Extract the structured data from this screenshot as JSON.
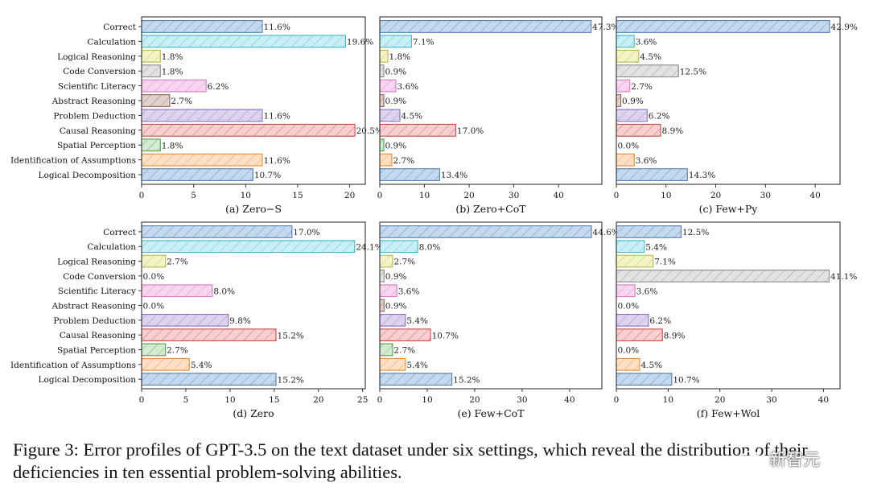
{
  "figure": {
    "caption": "Figure 3: Error profiles of GPT-3.5 on the text dataset under six settings, which reveal the distribution of their deficiencies in ten essential problem-solving abilities.",
    "watermark": "新智元",
    "watermark_icon": "wechat-icon"
  },
  "chart_data": [
    {
      "type": "bar",
      "orientation": "horizontal",
      "title": "(a) Zero−S",
      "categories": [
        "Correct",
        "Calculation",
        "Logical Reasoning",
        "Code Conversion",
        "Scientific Literacy",
        "Abstract Reasoning",
        "Problem Deduction",
        "Causal Reasoning",
        "Spatial Perception",
        "Identification of Assumptions",
        "Logical Decomposition"
      ],
      "values": [
        11.6,
        19.6,
        1.8,
        1.8,
        6.2,
        2.7,
        11.6,
        20.5,
        1.8,
        11.6,
        10.7
      ],
      "data_labels": [
        "11.6%",
        "19.6%",
        "1.8%",
        "1.8%",
        "6.2%",
        "2.7%",
        "11.6%",
        "20.5%",
        "1.8%",
        "11.6%",
        "10.7%"
      ],
      "xlim": [
        0,
        21.5
      ],
      "xticks": [
        0,
        5,
        10,
        15,
        20
      ],
      "grid": false
    },
    {
      "type": "bar",
      "orientation": "horizontal",
      "title": "(b) Zero+CoT",
      "categories": [
        "Correct",
        "Calculation",
        "Logical Reasoning",
        "Code Conversion",
        "Scientific Literacy",
        "Abstract Reasoning",
        "Problem Deduction",
        "Causal Reasoning",
        "Spatial Perception",
        "Identification of Assumptions",
        "Logical Decomposition"
      ],
      "values": [
        47.3,
        7.1,
        1.8,
        0.9,
        3.6,
        0.9,
        4.5,
        17.0,
        0.9,
        2.7,
        13.4
      ],
      "data_labels": [
        "47.3%",
        "7.1%",
        "1.8%",
        "0.9%",
        "3.6%",
        "0.9%",
        "4.5%",
        "17.0%",
        "0.9%",
        "2.7%",
        "13.4%"
      ],
      "xlim": [
        0,
        49.7
      ],
      "xticks": [
        0,
        10,
        20,
        30,
        40
      ],
      "grid": false
    },
    {
      "type": "bar",
      "orientation": "horizontal",
      "title": "(c) Few+Py",
      "categories": [
        "Correct",
        "Calculation",
        "Logical Reasoning",
        "Code Conversion",
        "Scientific Literacy",
        "Abstract Reasoning",
        "Problem Deduction",
        "Causal Reasoning",
        "Spatial Perception",
        "Identification of Assumptions",
        "Logical Decomposition"
      ],
      "values": [
        42.9,
        3.6,
        4.5,
        12.5,
        2.7,
        0.9,
        6.2,
        8.9,
        0.0,
        3.6,
        14.3
      ],
      "data_labels": [
        "42.9%",
        "3.6%",
        "4.5%",
        "12.5%",
        "2.7%",
        "0.9%",
        "6.2%",
        "8.9%",
        "0.0%",
        "3.6%",
        "14.3%"
      ],
      "xlim": [
        0,
        45.0
      ],
      "xticks": [
        0,
        10,
        20,
        30,
        40
      ],
      "grid": false
    },
    {
      "type": "bar",
      "orientation": "horizontal",
      "title": "(d) Zero",
      "categories": [
        "Correct",
        "Calculation",
        "Logical Reasoning",
        "Code Conversion",
        "Scientific Literacy",
        "Abstract Reasoning",
        "Problem Deduction",
        "Causal Reasoning",
        "Spatial Perception",
        "Identification of Assumptions",
        "Logical Decomposition"
      ],
      "values": [
        17.0,
        24.1,
        2.7,
        0.0,
        8.0,
        0.0,
        9.8,
        15.2,
        2.7,
        5.4,
        15.2
      ],
      "data_labels": [
        "17.0%",
        "24.1%",
        "2.7%",
        "0.0%",
        "8.0%",
        "0.0%",
        "9.8%",
        "15.2%",
        "2.7%",
        "5.4%",
        "15.2%"
      ],
      "xlim": [
        0,
        25.3
      ],
      "xticks": [
        0,
        5,
        10,
        15,
        20,
        25
      ],
      "grid": false
    },
    {
      "type": "bar",
      "orientation": "horizontal",
      "title": "(e) Few+CoT",
      "categories": [
        "Correct",
        "Calculation",
        "Logical Reasoning",
        "Code Conversion",
        "Scientific Literacy",
        "Abstract Reasoning",
        "Problem Deduction",
        "Causal Reasoning",
        "Spatial Perception",
        "Identification of Assumptions",
        "Logical Decomposition"
      ],
      "values": [
        44.6,
        8.0,
        2.7,
        0.9,
        3.6,
        0.9,
        5.4,
        10.7,
        2.7,
        5.4,
        15.2
      ],
      "data_labels": [
        "44.6%",
        "8.0%",
        "2.7%",
        "0.9%",
        "3.6%",
        "0.9%",
        "5.4%",
        "10.7%",
        "2.7%",
        "5.4%",
        "15.2%"
      ],
      "xlim": [
        0,
        46.8
      ],
      "xticks": [
        0,
        10,
        20,
        30,
        40
      ],
      "grid": false
    },
    {
      "type": "bar",
      "orientation": "horizontal",
      "title": "(f) Few+Wol",
      "categories": [
        "Correct",
        "Calculation",
        "Logical Reasoning",
        "Code Conversion",
        "Scientific Literacy",
        "Abstract Reasoning",
        "Problem Deduction",
        "Causal Reasoning",
        "Spatial Perception",
        "Identification of Assumptions",
        "Logical Decomposition"
      ],
      "values": [
        12.5,
        5.4,
        7.1,
        41.1,
        3.6,
        0.0,
        6.2,
        8.9,
        0.0,
        4.5,
        10.7
      ],
      "data_labels": [
        "12.5%",
        "5.4%",
        "7.1%",
        "41.1%",
        "3.6%",
        "0.0%",
        "6.2%",
        "8.9%",
        "0.0%",
        "4.5%",
        "10.7%"
      ],
      "xlim": [
        0,
        43.2
      ],
      "xticks": [
        0,
        10,
        20,
        30,
        40
      ],
      "grid": false
    }
  ],
  "category_colors": [
    {
      "fill": "#c5d9ee",
      "stroke": "#4f7fb4"
    },
    {
      "fill": "#c9eef4",
      "stroke": "#3fb9cc"
    },
    {
      "fill": "#f3f3c8",
      "stroke": "#b9b94a"
    },
    {
      "fill": "#e2e2e2",
      "stroke": "#8a8a8a"
    },
    {
      "fill": "#f8d5ef",
      "stroke": "#d67cc4"
    },
    {
      "fill": "#e1d1cb",
      "stroke": "#8f6457"
    },
    {
      "fill": "#ddd3ef",
      "stroke": "#8a72bf"
    },
    {
      "fill": "#f6cfcf",
      "stroke": "#cc4b4b"
    },
    {
      "fill": "#d3ecd1",
      "stroke": "#4f9f4a"
    },
    {
      "fill": "#fde0c5",
      "stroke": "#f08a2e"
    },
    {
      "fill": "#c5d9ee",
      "stroke": "#4f7fb4"
    }
  ]
}
